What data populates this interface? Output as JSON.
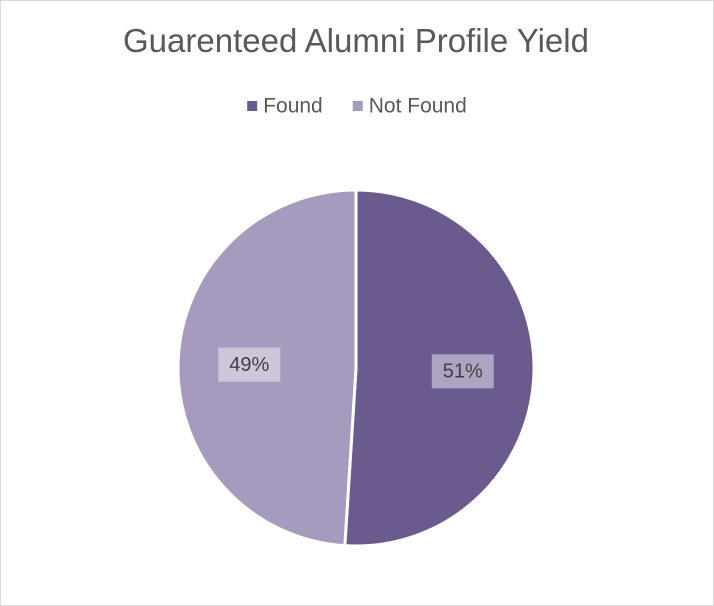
{
  "chart_data": {
    "type": "pie",
    "title": "Guarenteed Alumni Profile Yield",
    "legend_position": "top",
    "slices": [
      {
        "label": "Found",
        "value": 51,
        "data_label": "51%",
        "color": "#6b5a8e"
      },
      {
        "label": "Not Found",
        "value": 49,
        "data_label": "49%",
        "color": "#a69abf"
      }
    ]
  }
}
